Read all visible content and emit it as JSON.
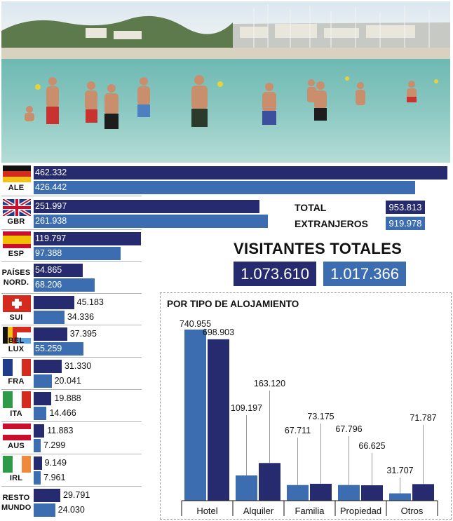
{
  "colors": {
    "year_a": "#262a6e",
    "year_b": "#3d6db1"
  },
  "countries": [
    {
      "code": [
        "ALE"
      ],
      "flag": "germany-flag",
      "a": "462.332",
      "b": "426.442"
    },
    {
      "code": [
        "GBR"
      ],
      "flag": "uk-flag",
      "a": "251.997",
      "b": "261.938"
    },
    {
      "code": [
        "ESP"
      ],
      "flag": "spain-flag",
      "a": "119.797",
      "b": "97.388"
    },
    {
      "code": [
        "PAÍSES",
        "NORD."
      ],
      "flag": "",
      "a": "54.865",
      "b": "68.206"
    },
    {
      "code": [
        "SUI"
      ],
      "flag": "switzerland-flag",
      "a": "45.183",
      "b": "34.336"
    },
    {
      "code": [
        "BEL",
        "LUX"
      ],
      "flag": "belgium-luxembourg-flag",
      "a": "37.395",
      "b": "55.259"
    },
    {
      "code": [
        "FRA"
      ],
      "flag": "france-flag",
      "a": "31.330",
      "b": "20.041"
    },
    {
      "code": [
        "ITA"
      ],
      "flag": "italy-flag",
      "a": "19.888",
      "b": "14.466"
    },
    {
      "code": [
        "AUS"
      ],
      "flag": "austria-flag",
      "a": "11.883",
      "b": "7.299"
    },
    {
      "code": [
        "IRL"
      ],
      "flag": "ireland-flag",
      "a": "9.149",
      "b": "7.961"
    },
    {
      "code": [
        "RESTO",
        "MUNDO"
      ],
      "flag": "",
      "a": "29.791",
      "b": "24.030"
    }
  ],
  "totals": {
    "total_label": "TOTAL",
    "total_a": "953.813",
    "foreign_label": "EXTRANJEROS",
    "foreign_b": "919.978",
    "headline": "VISITANTES TOTALES",
    "visitors_a": "1.073.610",
    "visitors_b": "1.017.366"
  },
  "chart_data": {
    "type": "bar",
    "title": "POR TIPO DE ALOJAMIENTO",
    "categories": [
      "Hotel",
      "Alquiler",
      "Familia",
      "Propiedad",
      "Otros"
    ],
    "series": [
      {
        "color": "#3d6db1",
        "values": [
          740955,
          109197,
          67711,
          67796,
          31707
        ],
        "labels": [
          "740.955",
          "109.197",
          "67.711",
          "67.796",
          "31.707"
        ]
      },
      {
        "color": "#262a6e",
        "values": [
          698903,
          163120,
          73175,
          66625,
          71787
        ],
        "labels": [
          "698.903",
          "163.120",
          "73.175",
          "66.625",
          "71.787"
        ]
      }
    ]
  }
}
